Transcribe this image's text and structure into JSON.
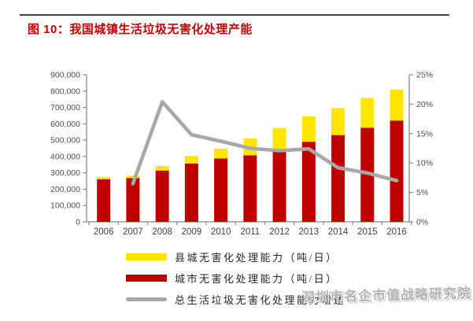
{
  "header": {
    "title": "图 10：我国城镇生活垃圾无害化处理产能"
  },
  "watermark": {
    "text": "深圳市名企市值战略研究院"
  },
  "legend": {
    "items": [
      {
        "label": "县城无害化处理能力（吨/日）",
        "swatch": "bar",
        "color": "#FFE600"
      },
      {
        "label": "城市无害化处理能力（吨/日）",
        "swatch": "bar",
        "color": "#C00000"
      },
      {
        "label": "总生活垃圾无害化处理能力增速",
        "swatch": "line",
        "color": "#A8A8A8"
      }
    ]
  },
  "chart_data": {
    "type": "bar",
    "title": "我国城镇生活垃圾无害化处理产能",
    "categories": [
      "2006",
      "2007",
      "2008",
      "2009",
      "2010",
      "2011",
      "2012",
      "2013",
      "2014",
      "2015",
      "2016"
    ],
    "series": [
      {
        "name": "城市无害化处理能力（吨/日）",
        "type": "bar",
        "stack": "total",
        "color": "#C00000",
        "values": [
          260000,
          268000,
          314000,
          357000,
          388000,
          407000,
          440000,
          490000,
          531000,
          576000,
          620000
        ]
      },
      {
        "name": "县城无害化处理能力（吨/日）",
        "type": "bar",
        "stack": "total",
        "color": "#FFE600",
        "values": [
          15000,
          14000,
          28000,
          46000,
          60000,
          103000,
          135000,
          155000,
          165000,
          182000,
          190000
        ]
      },
      {
        "name": "总生活垃圾无害化处理能力增速",
        "type": "line",
        "axis": "right",
        "color": "#A8A8A8",
        "values": [
          null,
          6.5,
          20.4,
          14.8,
          13.7,
          12.5,
          12.1,
          12.4,
          9.2,
          8.3,
          7.0
        ]
      }
    ],
    "left_axis": {
      "min": 0,
      "max": 900000,
      "tick_step": 100000,
      "tick_labels": [
        "0",
        "100,000",
        "200,000",
        "300,000",
        "400,000",
        "500,000",
        "600,000",
        "700,000",
        "800,000",
        "900,000"
      ]
    },
    "right_axis": {
      "min": 0,
      "max": 25,
      "tick_step": 5,
      "tick_labels": [
        "0%",
        "5%",
        "10%",
        "15%",
        "20%",
        "25%"
      ]
    },
    "grid": false,
    "legend_position": "bottom"
  }
}
